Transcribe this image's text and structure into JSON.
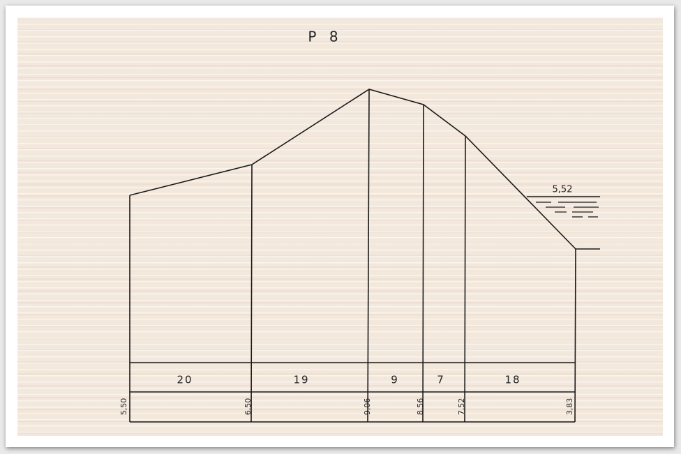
{
  "title": "P 8",
  "segments": [
    "20",
    "19",
    "9",
    "7",
    "18"
  ],
  "elevations": [
    "5,50",
    "6,50",
    "9,06",
    "8,56",
    "7,52",
    "3,83"
  ],
  "water_level": "5,52"
}
